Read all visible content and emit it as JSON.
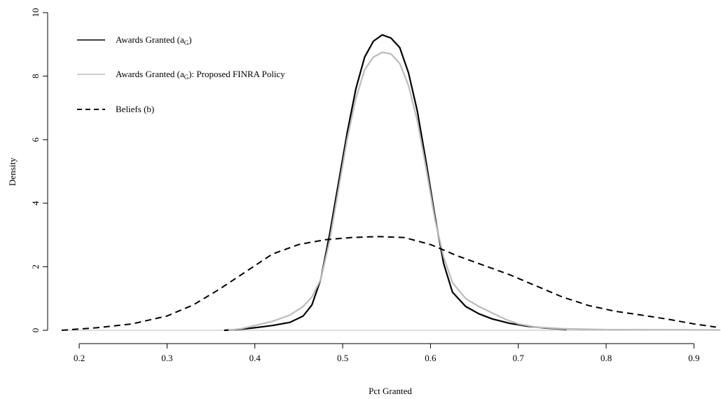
{
  "chart_data": {
    "type": "line",
    "title": "",
    "xlabel": "Pct Granted",
    "ylabel": "Density",
    "xlim": [
      0.18,
      0.93
    ],
    "ylim": [
      0,
      10
    ],
    "x_ticks": [
      0.2,
      0.3,
      0.4,
      0.5,
      0.6,
      0.7,
      0.8,
      0.9
    ],
    "x_tick_labels": [
      "0.2",
      "0.3",
      "0.4",
      "0.5",
      "0.6",
      "0.7",
      "0.8",
      "0.9"
    ],
    "y_ticks": [
      0,
      2,
      4,
      6,
      8,
      10
    ],
    "y_tick_labels": [
      "0",
      "2",
      "4",
      "6",
      "8",
      "10"
    ],
    "grid": false,
    "legend_position": "top-left",
    "series": [
      {
        "name": "Awards Granted (aG)",
        "legend_main": "Awards Granted (a",
        "legend_sub": "G",
        "legend_tail": ")",
        "color": "#000000",
        "style": "solid",
        "points": [
          [
            0.365,
            0.0
          ],
          [
            0.38,
            0.02
          ],
          [
            0.4,
            0.08
          ],
          [
            0.42,
            0.15
          ],
          [
            0.44,
            0.25
          ],
          [
            0.455,
            0.45
          ],
          [
            0.465,
            0.8
          ],
          [
            0.475,
            1.6
          ],
          [
            0.485,
            3.0
          ],
          [
            0.495,
            4.6
          ],
          [
            0.505,
            6.2
          ],
          [
            0.515,
            7.6
          ],
          [
            0.525,
            8.6
          ],
          [
            0.535,
            9.1
          ],
          [
            0.545,
            9.3
          ],
          [
            0.555,
            9.2
          ],
          [
            0.565,
            8.9
          ],
          [
            0.575,
            8.1
          ],
          [
            0.585,
            6.9
          ],
          [
            0.595,
            5.3
          ],
          [
            0.605,
            3.6
          ],
          [
            0.615,
            2.1
          ],
          [
            0.625,
            1.2
          ],
          [
            0.64,
            0.75
          ],
          [
            0.655,
            0.52
          ],
          [
            0.67,
            0.36
          ],
          [
            0.69,
            0.22
          ],
          [
            0.71,
            0.13
          ],
          [
            0.73,
            0.07
          ],
          [
            0.755,
            0.03
          ]
        ]
      },
      {
        "name": "Awards Granted (aG): Proposed FINRA Policy",
        "legend_main": "Awards Granted (a",
        "legend_sub": "G",
        "legend_tail": "): Proposed FINRA Policy",
        "color": "#bbbbbb",
        "style": "solid",
        "points": [
          [
            0.37,
            0.0
          ],
          [
            0.385,
            0.05
          ],
          [
            0.4,
            0.15
          ],
          [
            0.42,
            0.28
          ],
          [
            0.44,
            0.48
          ],
          [
            0.455,
            0.75
          ],
          [
            0.465,
            1.05
          ],
          [
            0.475,
            1.6
          ],
          [
            0.485,
            2.8
          ],
          [
            0.495,
            4.4
          ],
          [
            0.505,
            6.0
          ],
          [
            0.515,
            7.3
          ],
          [
            0.525,
            8.2
          ],
          [
            0.535,
            8.6
          ],
          [
            0.545,
            8.75
          ],
          [
            0.555,
            8.7
          ],
          [
            0.565,
            8.4
          ],
          [
            0.575,
            7.7
          ],
          [
            0.585,
            6.6
          ],
          [
            0.595,
            5.1
          ],
          [
            0.605,
            3.5
          ],
          [
            0.615,
            2.3
          ],
          [
            0.625,
            1.5
          ],
          [
            0.64,
            1.0
          ],
          [
            0.655,
            0.75
          ],
          [
            0.67,
            0.55
          ],
          [
            0.685,
            0.35
          ],
          [
            0.7,
            0.2
          ],
          [
            0.72,
            0.1
          ],
          [
            0.75,
            0.05
          ],
          [
            0.8,
            0.02
          ],
          [
            0.93,
            0.01
          ]
        ]
      },
      {
        "name": "Beliefs (b)",
        "legend_main": "Beliefs (b)",
        "legend_sub": "",
        "legend_tail": "",
        "color": "#000000",
        "style": "dashed",
        "points": [
          [
            0.18,
            0.0
          ],
          [
            0.22,
            0.08
          ],
          [
            0.26,
            0.2
          ],
          [
            0.3,
            0.45
          ],
          [
            0.33,
            0.8
          ],
          [
            0.36,
            1.3
          ],
          [
            0.39,
            1.85
          ],
          [
            0.42,
            2.4
          ],
          [
            0.45,
            2.7
          ],
          [
            0.48,
            2.85
          ],
          [
            0.51,
            2.92
          ],
          [
            0.54,
            2.95
          ],
          [
            0.57,
            2.92
          ],
          [
            0.6,
            2.7
          ],
          [
            0.63,
            2.35
          ],
          [
            0.66,
            2.05
          ],
          [
            0.69,
            1.75
          ],
          [
            0.72,
            1.4
          ],
          [
            0.75,
            1.05
          ],
          [
            0.78,
            0.78
          ],
          [
            0.81,
            0.6
          ],
          [
            0.84,
            0.48
          ],
          [
            0.87,
            0.35
          ],
          [
            0.9,
            0.2
          ],
          [
            0.925,
            0.1
          ]
        ]
      }
    ]
  }
}
